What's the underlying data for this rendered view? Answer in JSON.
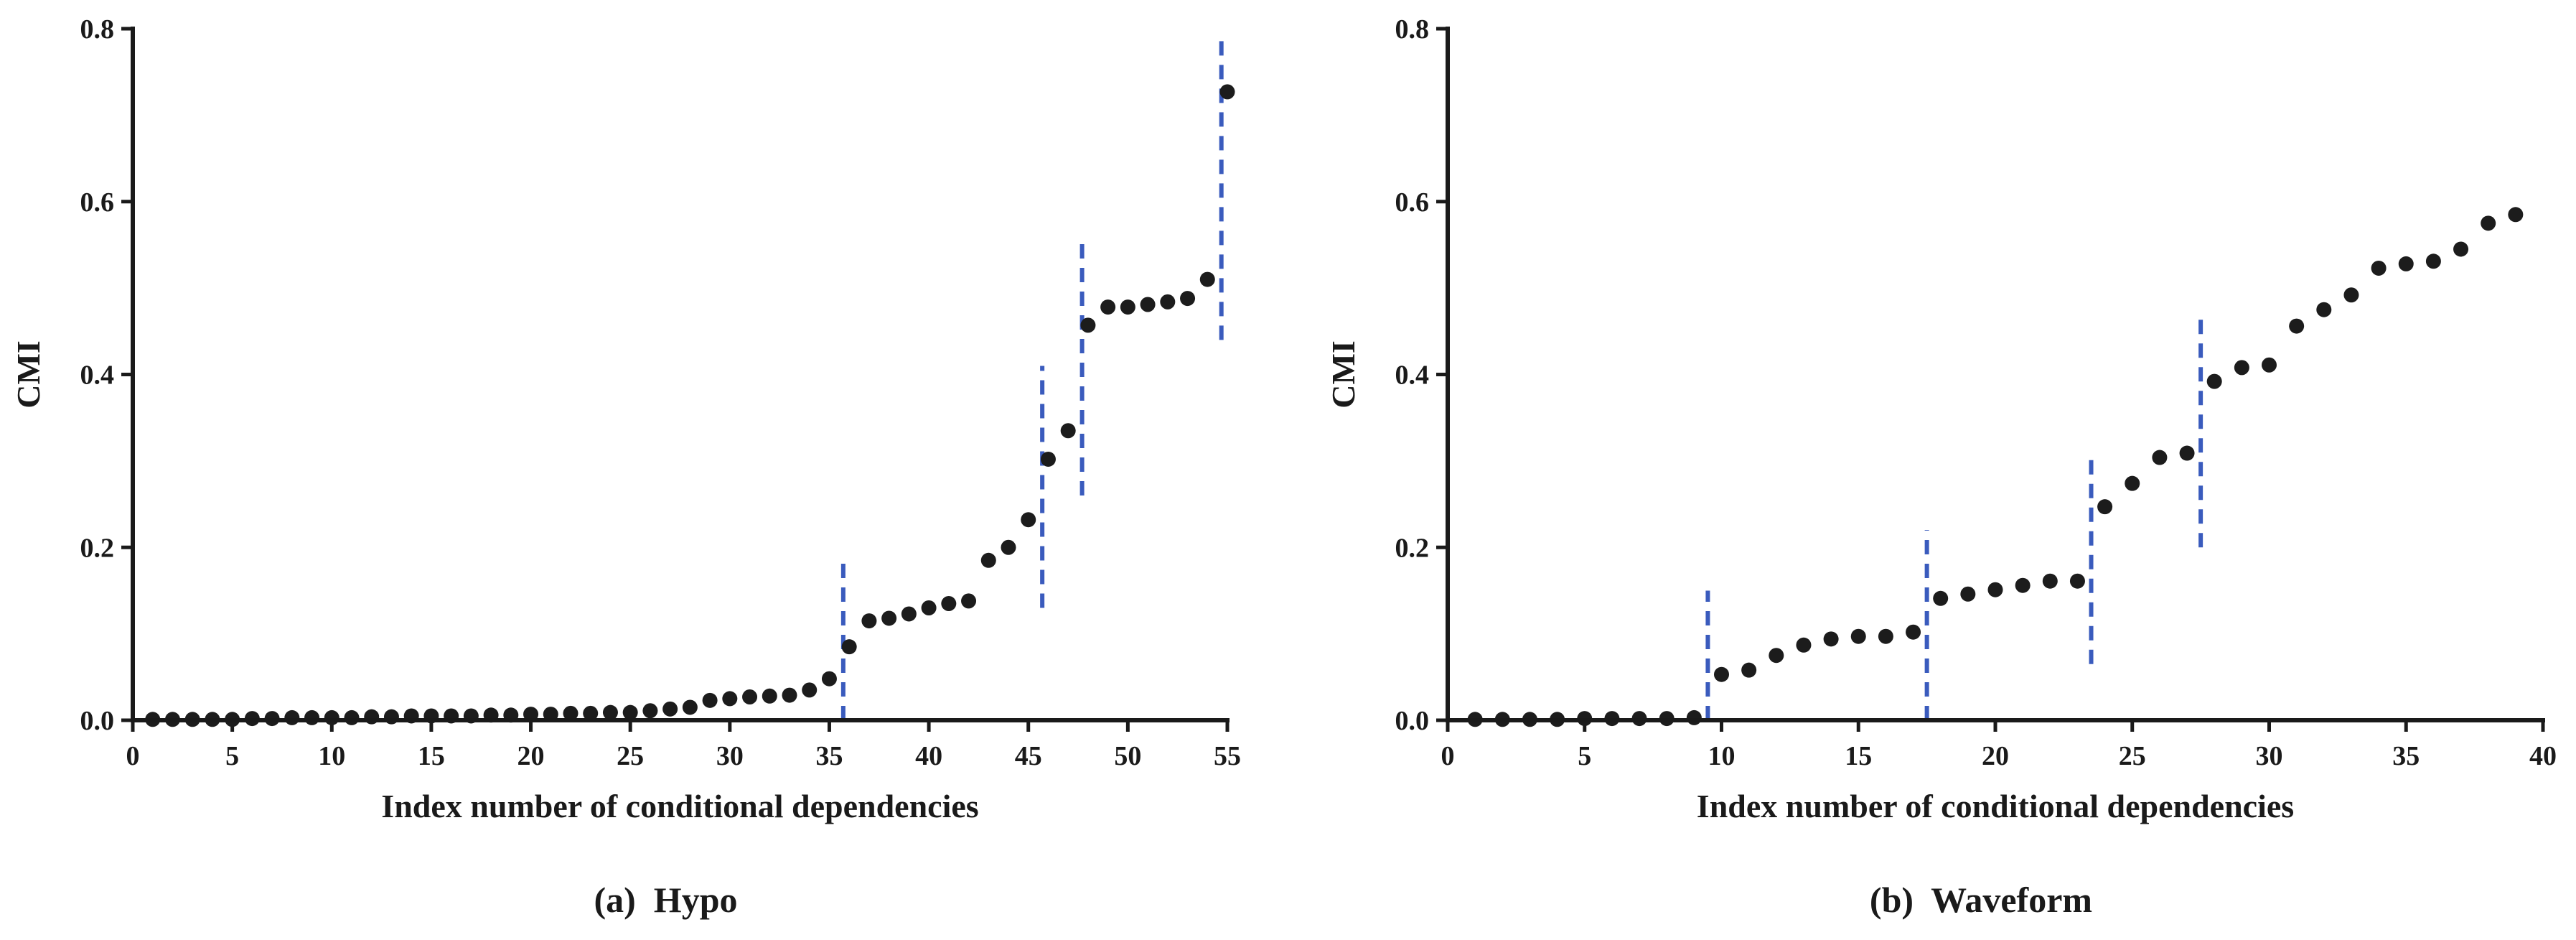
{
  "colors": {
    "points": "#1c1c1c",
    "divider": "#3a5bbd",
    "axis": "#1a1a1a"
  },
  "chart_data": [
    {
      "type": "scatter",
      "caption": "(a)  Hypo",
      "xlabel": "Index number of conditional dependencies",
      "ylabel": "CMI",
      "xlim": [
        0,
        55
      ],
      "ylim": [
        0,
        0.8
      ],
      "xticks": [
        "0",
        "5",
        "10",
        "15",
        "20",
        "25",
        "30",
        "35",
        "40",
        "45",
        "50",
        "55"
      ],
      "yticks": [
        "0.0",
        "0.2",
        "0.4",
        "0.6",
        "0.8"
      ],
      "dividers": [
        {
          "x": 35.7,
          "y_from": 0.0,
          "y_to": 0.19
        },
        {
          "x": 45.7,
          "y_from": 0.13,
          "y_to": 0.41
        },
        {
          "x": 47.7,
          "y_from": 0.26,
          "y_to": 0.56
        },
        {
          "x": 54.7,
          "y_from": 0.44,
          "y_to": 0.79
        }
      ],
      "series": [
        {
          "name": "Hypo",
          "x": [
            1,
            2,
            3,
            4,
            5,
            6,
            7,
            8,
            9,
            10,
            11,
            12,
            13,
            14,
            15,
            16,
            17,
            18,
            19,
            20,
            21,
            22,
            23,
            24,
            25,
            26,
            27,
            28,
            29,
            30,
            31,
            32,
            33,
            34,
            35,
            36,
            37,
            38,
            39,
            40,
            41,
            42,
            43,
            44,
            45,
            46,
            47,
            48,
            49,
            50,
            51,
            52,
            53,
            54,
            55
          ],
          "y": [
            0.001,
            0.001,
            0.001,
            0.001,
            0.001,
            0.002,
            0.002,
            0.003,
            0.003,
            0.003,
            0.003,
            0.004,
            0.004,
            0.005,
            0.005,
            0.005,
            0.005,
            0.006,
            0.006,
            0.007,
            0.007,
            0.008,
            0.008,
            0.009,
            0.009,
            0.011,
            0.013,
            0.015,
            0.023,
            0.025,
            0.027,
            0.028,
            0.029,
            0.035,
            0.048,
            0.085,
            0.115,
            0.118,
            0.123,
            0.13,
            0.135,
            0.138,
            0.185,
            0.2,
            0.232,
            0.302,
            0.335,
            0.457,
            0.478,
            0.478,
            0.481,
            0.484,
            0.488,
            0.51,
            0.727
          ]
        }
      ]
    },
    {
      "type": "scatter",
      "caption": "(b)  Waveform",
      "xlabel": "Index number of conditional dependencies",
      "ylabel": "CMI",
      "xlim": [
        0,
        40
      ],
      "ylim": [
        0,
        0.8
      ],
      "xticks": [
        "0",
        "5",
        "10",
        "15",
        "20",
        "25",
        "30",
        "35",
        "40"
      ],
      "yticks": [
        "0.0",
        "0.2",
        "0.4",
        "0.6",
        "0.8"
      ],
      "dividers": [
        {
          "x": 9.5,
          "y_from": 0.0,
          "y_to": 0.15
        },
        {
          "x": 17.5,
          "y_from": 0.0,
          "y_to": 0.22
        },
        {
          "x": 23.5,
          "y_from": 0.065,
          "y_to": 0.31
        },
        {
          "x": 27.5,
          "y_from": 0.2,
          "y_to": 0.47
        }
      ],
      "series": [
        {
          "name": "Waveform",
          "x": [
            1,
            2,
            3,
            4,
            5,
            6,
            7,
            8,
            9,
            10,
            11,
            12,
            13,
            14,
            15,
            16,
            17,
            18,
            19,
            20,
            21,
            22,
            23,
            24,
            25,
            26,
            27,
            28,
            29,
            30,
            31,
            32,
            33,
            34,
            35,
            36,
            37,
            38,
            39
          ],
          "y": [
            0.001,
            0.001,
            0.001,
            0.001,
            0.002,
            0.002,
            0.002,
            0.002,
            0.003,
            0.053,
            0.058,
            0.075,
            0.087,
            0.094,
            0.097,
            0.097,
            0.102,
            0.141,
            0.146,
            0.151,
            0.156,
            0.161,
            0.161,
            0.247,
            0.274,
            0.304,
            0.309,
            0.392,
            0.408,
            0.411,
            0.456,
            0.475,
            0.492,
            0.523,
            0.528,
            0.531,
            0.545,
            0.575,
            0.585
          ]
        }
      ]
    }
  ]
}
